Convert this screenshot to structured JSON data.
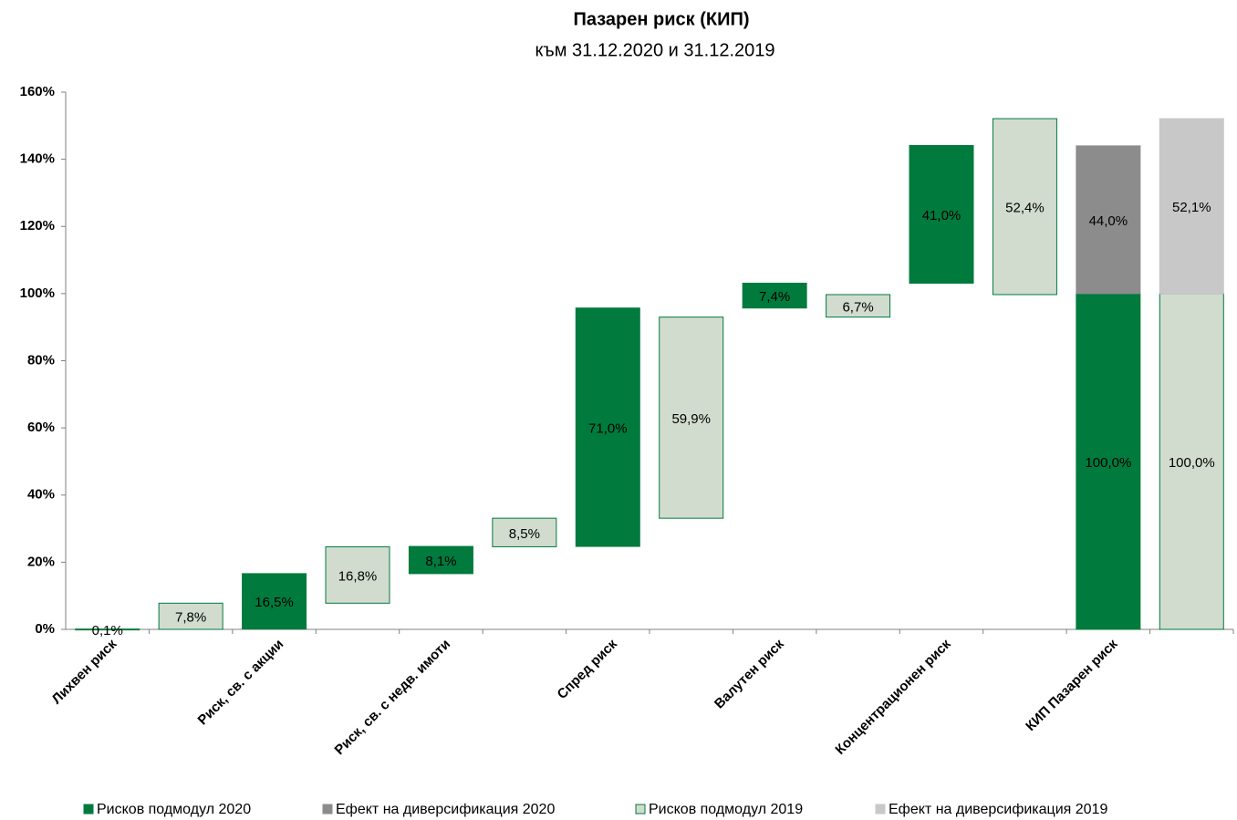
{
  "chart_data": {
    "type": "waterfall",
    "title": "Пазарен риск (КИП)",
    "subtitle": "към 31.12.2020 и 31.12.2019",
    "categories": [
      "Лихвен риск",
      "Риск, св. с акции",
      "Риск, св. с недв. имоти",
      "Спред риск",
      "Валутен риск",
      "Концентрационен риск",
      "КИП Пазарен риск"
    ],
    "is_total": [
      false,
      false,
      false,
      false,
      false,
      false,
      true
    ],
    "series": [
      {
        "name": "Рисков подмодул 2020",
        "color": "#007a3d",
        "stroke": "#007a3d",
        "role": "submodule",
        "slot": 0,
        "values": [
          0.1,
          16.5,
          8.1,
          71.0,
          7.4,
          41.0,
          100.0
        ],
        "value_labels": [
          "0,1%",
          "16,5%",
          "8,1%",
          "71,0%",
          "7,4%",
          "41,0%",
          "100,0%"
        ]
      },
      {
        "name": "Ефект на диверсификация 2020",
        "color": "#8c8c8c",
        "stroke": "#8c8c8c",
        "role": "diversification",
        "slot": 0,
        "values": [
          null,
          null,
          null,
          null,
          null,
          null,
          44.0
        ],
        "value_labels": [
          null,
          null,
          null,
          null,
          null,
          null,
          "44,0%"
        ]
      },
      {
        "name": "Рисков подмодул 2019",
        "color": "#d1dccf",
        "stroke": "#007a3d",
        "role": "submodule",
        "slot": 1,
        "values": [
          7.8,
          16.8,
          8.5,
          59.9,
          6.7,
          52.4,
          100.0
        ],
        "value_labels": [
          "7,8%",
          "16,8%",
          "8,5%",
          "59,9%",
          "6,7%",
          "52,4%",
          "100,0%"
        ]
      },
      {
        "name": "Ефект на диверсификация 2019",
        "color": "#c8c8c8",
        "stroke": "#c8c8c8",
        "role": "diversification",
        "slot": 1,
        "values": [
          null,
          null,
          null,
          null,
          null,
          null,
          52.1
        ],
        "value_labels": [
          null,
          null,
          null,
          null,
          null,
          null,
          "52,1%"
        ]
      }
    ],
    "ylim": [
      0,
      160
    ],
    "yticks": [
      {
        "value": 0,
        "label": "0%"
      },
      {
        "value": 20,
        "label": "20%"
      },
      {
        "value": 40,
        "label": "40%"
      },
      {
        "value": 60,
        "label": "60%"
      },
      {
        "value": 80,
        "label": "80%"
      },
      {
        "value": 100,
        "label": "100%"
      },
      {
        "value": 120,
        "label": "120%"
      },
      {
        "value": 140,
        "label": "140%"
      },
      {
        "value": 160,
        "label": "160%"
      }
    ],
    "grid": false,
    "legend": "bottom"
  }
}
